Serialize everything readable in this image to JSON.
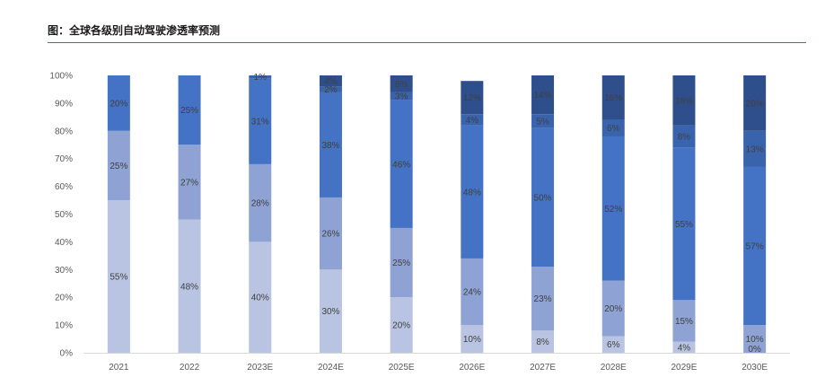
{
  "title": "图：全球各级别自动驾驶渗透率预测",
  "colors": {
    "title_rule": "#3b6fb6",
    "axis": "#d9d9d9",
    "text": "#595959"
  },
  "chart_data": {
    "type": "bar",
    "stacked": true,
    "categories": [
      "2021",
      "2022",
      "2023E",
      "2024E",
      "2025E",
      "2026E",
      "2027E",
      "2028E",
      "2029E",
      "2030E"
    ],
    "ylim": [
      0,
      100
    ],
    "yticks": [
      "0%",
      "10%",
      "20%",
      "30%",
      "40%",
      "50%",
      "60%",
      "70%",
      "80%",
      "90%",
      "100%"
    ],
    "series": [
      {
        "color": "#b8c4e1",
        "values": [
          55,
          48,
          40,
          30,
          20,
          10,
          8,
          6,
          4,
          0
        ],
        "labels": [
          "55%",
          "48%",
          "40%",
          "30%",
          "20%",
          "10%",
          "8%",
          "6%",
          "4%",
          "0%"
        ]
      },
      {
        "color": "#8fa2d4",
        "values": [
          25,
          27,
          28,
          26,
          25,
          24,
          23,
          20,
          15,
          10
        ],
        "labels": [
          "25%",
          "27%",
          "28%",
          "26%",
          "25%",
          "24%",
          "23%",
          "20%",
          "15%",
          "10%"
        ]
      },
      {
        "color": "#4472c4",
        "values": [
          20,
          25,
          31,
          38,
          46,
          48,
          50,
          52,
          55,
          57
        ],
        "labels": [
          "20%",
          "25%",
          "31%",
          "38%",
          "46%",
          "48%",
          "50%",
          "52%",
          "55%",
          "57%"
        ]
      },
      {
        "color": "#3a63ad",
        "values": [
          0,
          0,
          1,
          2,
          3,
          4,
          5,
          6,
          8,
          13
        ],
        "labels": [
          "",
          "",
          "1%",
          "2%",
          "3%",
          "4%",
          "5%",
          "6%",
          "8%",
          "13%"
        ]
      },
      {
        "color": "#2e4f8c",
        "values": [
          0,
          0,
          0,
          4,
          6,
          12,
          14,
          16,
          18,
          20
        ],
        "labels": [
          "",
          "",
          "",
          "4%",
          "6%",
          "12%",
          "14%",
          "16%",
          "18%",
          "20%"
        ]
      }
    ]
  }
}
